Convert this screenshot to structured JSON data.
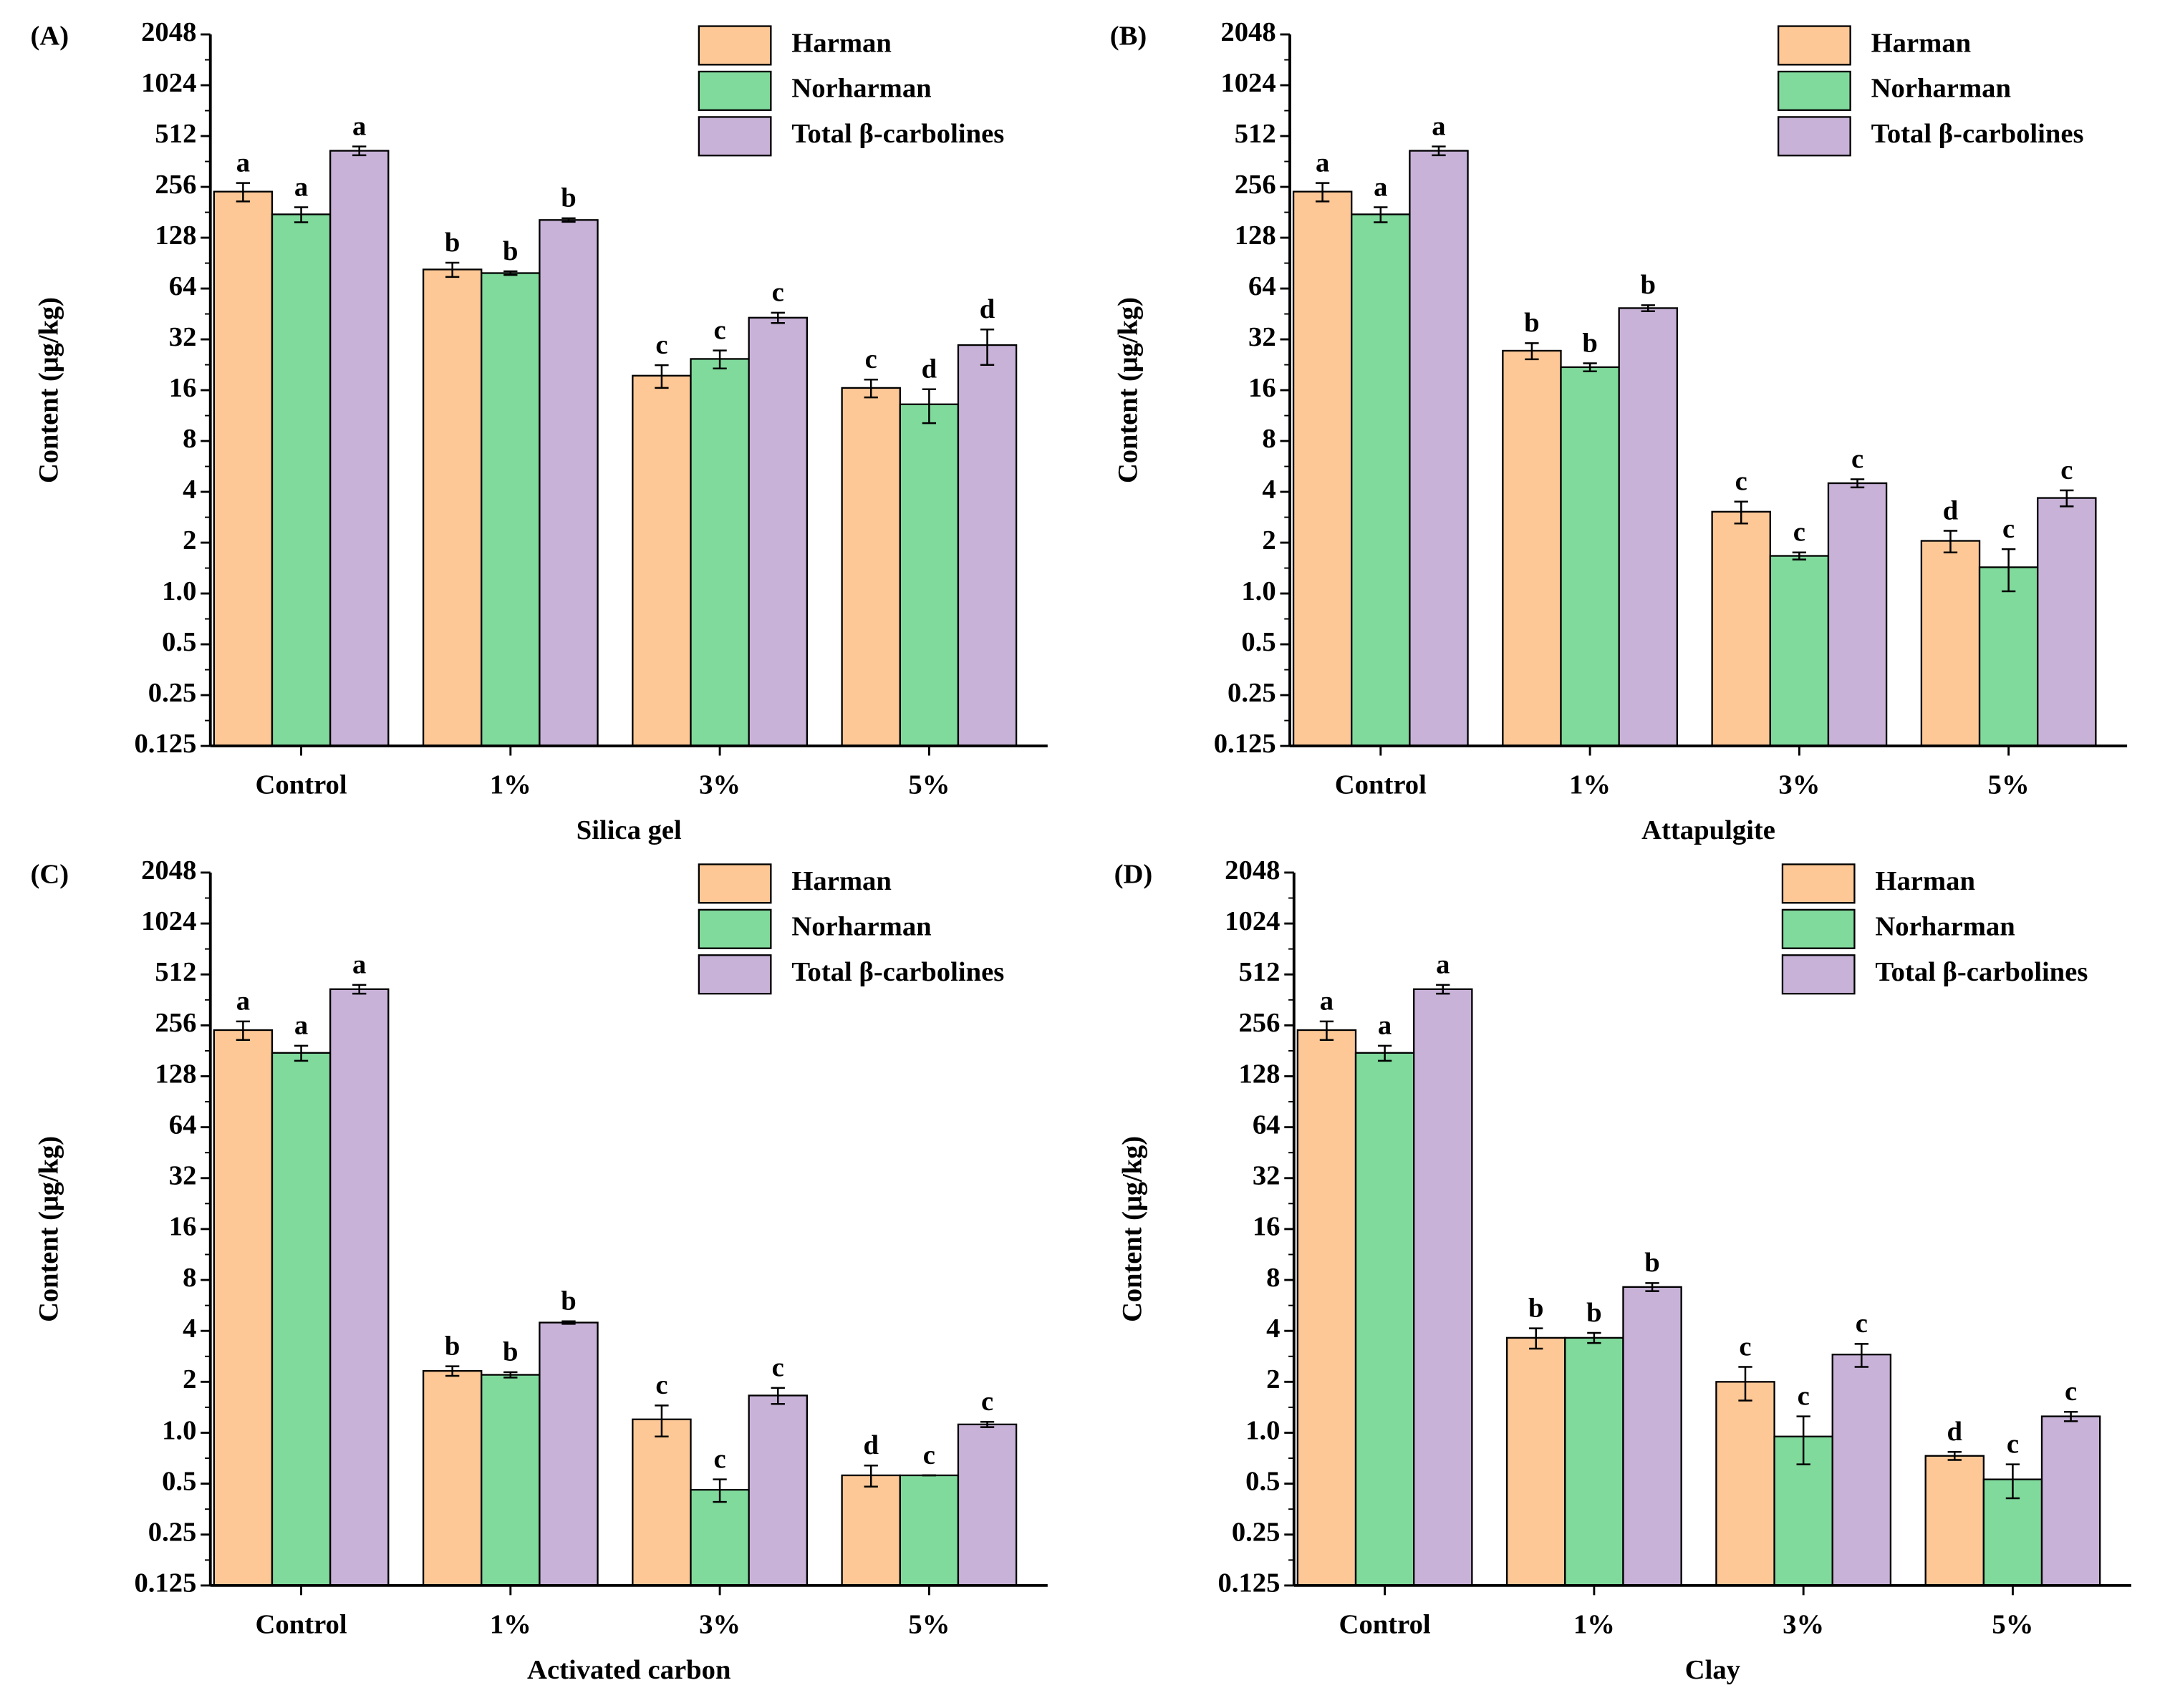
{
  "chart_data": [
    {
      "type": "bar",
      "panel": "(A)",
      "xlabel": "Silica gel",
      "ylabel": "Content (μg/kg)",
      "log_scale": 2,
      "legend": "upper right",
      "categories": [
        "Control",
        "1%",
        "3%",
        "5%"
      ],
      "ylim": [
        0.125,
        2048
      ],
      "yticks": [
        0.125,
        0.25,
        0.5,
        {
          "value": 1,
          "label": "1.0"
        },
        2,
        4,
        8,
        16,
        32,
        64,
        128,
        256,
        512,
        1024,
        2048
      ],
      "series": [
        {
          "name": "Harman",
          "color": "#fdc896",
          "values": [
            240,
            83,
            19.5,
            16.5
          ],
          "errors": [
            30,
            8,
            3,
            2
          ],
          "letters": [
            "a",
            "b",
            "c",
            "c"
          ]
        },
        {
          "name": "Norharman",
          "color": "#80da9c",
          "values": [
            176,
            79,
            24.5,
            13.2
          ],
          "errors": [
            18,
            2,
            3,
            3
          ],
          "letters": [
            "a",
            "b",
            "c",
            "d"
          ]
        },
        {
          "name": "Total β-carbolines",
          "color": "#c8b2d8",
          "values": [
            419,
            163,
            43,
            29.6
          ],
          "errors": [
            25,
            4,
            3,
            7
          ],
          "letters": [
            "a",
            "b",
            "c",
            "d"
          ]
        }
      ]
    },
    {
      "type": "bar",
      "panel": "(B)",
      "xlabel": "Attapulgite",
      "ylabel": "Content (μg/kg)",
      "log_scale": 2,
      "legend": "upper right",
      "categories": [
        "Control",
        "1%",
        "3%",
        "5%"
      ],
      "ylim": [
        0.125,
        2048
      ],
      "yticks": [
        0.125,
        0.25,
        0.5,
        {
          "value": 1,
          "label": "1.0"
        },
        2,
        4,
        8,
        16,
        32,
        64,
        128,
        256,
        512,
        1024,
        2048
      ],
      "series": [
        {
          "name": "Harman",
          "color": "#fdc896",
          "values": [
            240,
            27.4,
            3.05,
            2.05
          ],
          "errors": [
            30,
            3,
            0.45,
            0.3
          ],
          "letters": [
            "a",
            "b",
            "c",
            "d"
          ]
        },
        {
          "name": "Norharman",
          "color": "#80da9c",
          "values": [
            176,
            21.9,
            1.67,
            1.43
          ],
          "errors": [
            18,
            1.2,
            0.08,
            0.4
          ],
          "letters": [
            "a",
            "b",
            "c",
            "c"
          ]
        },
        {
          "name": "Total β-carbolines",
          "color": "#c8b2d8",
          "values": [
            419,
            49,
            4.5,
            3.68
          ],
          "errors": [
            25,
            2,
            0.25,
            0.4
          ],
          "letters": [
            "a",
            "b",
            "c",
            "c"
          ]
        }
      ]
    },
    {
      "type": "bar",
      "panel": "(C)",
      "xlabel": "Activated carbon",
      "ylabel": "Content (μg/kg)",
      "log_scale": 2,
      "legend": "upper right",
      "categories": [
        "Control",
        "1%",
        "3%",
        "5%"
      ],
      "ylim": [
        0.125,
        2048
      ],
      "yticks": [
        0.125,
        0.25,
        0.5,
        {
          "value": 1,
          "label": "1.0"
        },
        2,
        4,
        8,
        16,
        32,
        64,
        128,
        256,
        512,
        1024,
        2048
      ],
      "series": [
        {
          "name": "Harman",
          "color": "#fdc896",
          "values": [
            240,
            2.32,
            1.2,
            0.56
          ],
          "errors": [
            30,
            0.15,
            0.25,
            0.08
          ],
          "letters": [
            "a",
            "b",
            "c",
            "d"
          ]
        },
        {
          "name": "Norharman",
          "color": "#80da9c",
          "values": [
            176,
            2.2,
            0.46,
            0.56
          ],
          "errors": [
            18,
            0.08,
            0.07,
            0
          ],
          "letters": [
            "a",
            "b",
            "c",
            "c"
          ]
        },
        {
          "name": "Total β-carbolines",
          "color": "#c8b2d8",
          "values": [
            419,
            4.48,
            1.66,
            1.12
          ],
          "errors": [
            25,
            0.08,
            0.18,
            0.04
          ],
          "letters": [
            "a",
            "b",
            "c",
            "c"
          ]
        }
      ]
    },
    {
      "type": "bar",
      "panel": "(D)",
      "xlabel": "Clay",
      "ylabel": "Content (μg/kg)",
      "log_scale": 2,
      "legend": "upper right",
      "categories": [
        "Control",
        "1%",
        "3%",
        "5%"
      ],
      "ylim": [
        0.125,
        2048
      ],
      "yticks": [
        0.125,
        0.25,
        0.5,
        {
          "value": 1,
          "label": "1.0"
        },
        2,
        4,
        8,
        16,
        32,
        64,
        128,
        256,
        512,
        1024,
        2048
      ],
      "series": [
        {
          "name": "Harman",
          "color": "#fdc896",
          "values": [
            240,
            3.64,
            2.0,
            0.73
          ],
          "errors": [
            30,
            0.5,
            0.45,
            0.04
          ],
          "letters": [
            "a",
            "b",
            "c",
            "d"
          ]
        },
        {
          "name": "Norharman",
          "color": "#80da9c",
          "values": [
            176,
            3.64,
            0.95,
            0.53
          ],
          "errors": [
            18,
            0.25,
            0.3,
            0.12
          ],
          "letters": [
            "a",
            "b",
            "c",
            "c"
          ]
        },
        {
          "name": "Total β-carbolines",
          "color": "#c8b2d8",
          "values": [
            419,
            7.27,
            2.9,
            1.25
          ],
          "errors": [
            25,
            0.4,
            0.45,
            0.08
          ],
          "letters": [
            "a",
            "b",
            "c",
            "c"
          ]
        }
      ]
    }
  ]
}
